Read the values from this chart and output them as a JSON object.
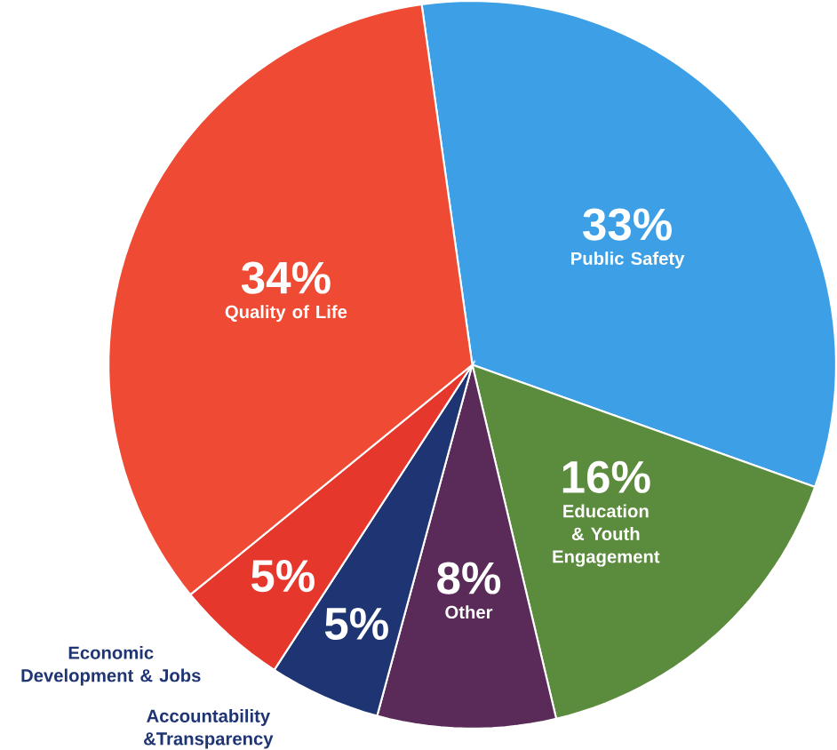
{
  "chart_data": {
    "type": "pie",
    "categories": [
      "Public Safety",
      "Education & Youth Engagement",
      "Other",
      "Accountability &Transparency",
      "Economic Development & Jobs",
      "Quality of Life"
    ],
    "values": [
      33,
      16,
      8,
      5,
      5,
      34
    ],
    "value_labels": [
      "33%",
      "16%",
      "8%",
      "5%",
      "5%",
      "34%"
    ],
    "colors": [
      "#3d9fe6",
      "#5b8b3c",
      "#5a2a58",
      "#1f3573",
      "#e5372c",
      "#ef4a33"
    ]
  }
}
